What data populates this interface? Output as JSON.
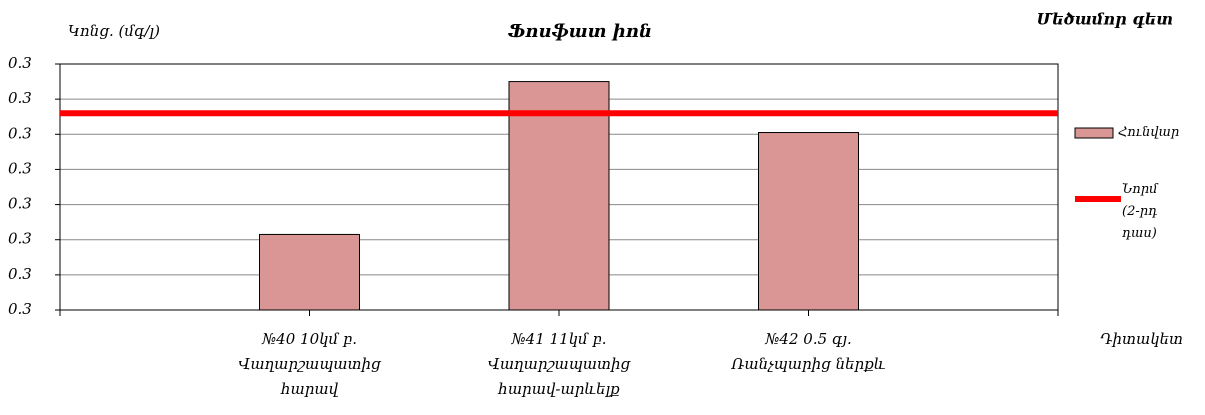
{
  "chart_data": {
    "type": "bar",
    "title": "Ֆոսֆատ իոն",
    "subtitle": "Մեծամոր գետ",
    "y_label": "Կոնց.  (մգ/լ)",
    "x_label": "Դիտակետ",
    "categories": [
      [
        "№40  10կմ բ.",
        "Վաղարշապատից",
        "հարավ"
      ],
      [
        "№41  11կմ բ.",
        "Վաղարշապատից",
        "հարավ-արևելք"
      ],
      [
        "№42  0.5 գյ.",
        "Ռանչպարից ներքև"
      ]
    ],
    "series": [
      {
        "name": "Հունվար",
        "color": "#d99694",
        "type": "bar",
        "values": [
          0.2943,
          0.303,
          0.3001
        ]
      },
      {
        "name": "Նորմ (2-րդ դաս)",
        "color": "#ff0000",
        "type": "line",
        "values": [
          0.3012,
          0.3012,
          0.3012
        ]
      }
    ],
    "ylim": [
      0.29,
      0.304
    ],
    "yticks": [
      {
        "value": 0.29,
        "label": "0.3"
      },
      {
        "value": 0.292,
        "label": "0.3"
      },
      {
        "value": 0.294,
        "label": "0.3"
      },
      {
        "value": 0.296,
        "label": "0.3"
      },
      {
        "value": 0.298,
        "label": "0.3"
      },
      {
        "value": 0.3,
        "label": "0.3"
      },
      {
        "value": 0.302,
        "label": "0.3"
      },
      {
        "value": 0.304,
        "label": "0.3"
      }
    ],
    "grid": true,
    "legend": "right"
  }
}
